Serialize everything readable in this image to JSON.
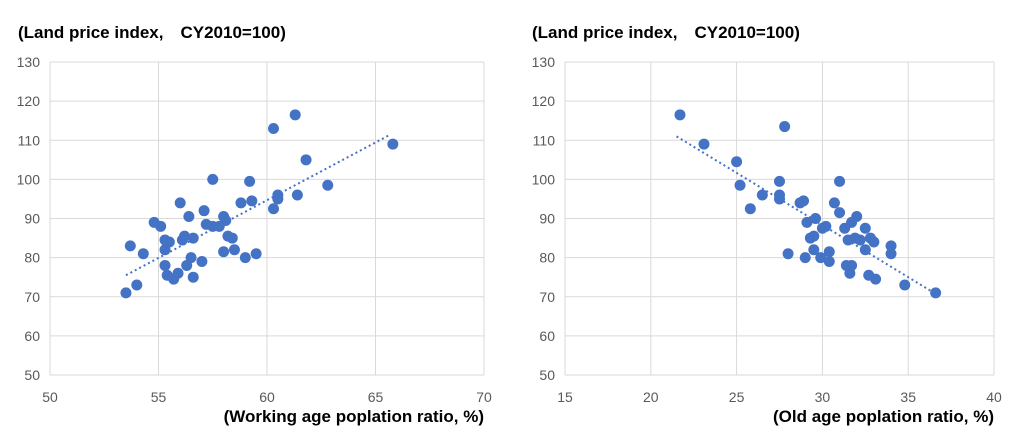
{
  "chart_data": [
    {
      "type": "scatter",
      "title": "(Land price index,　CY2010=100)",
      "xlabel": "(Working age poplation ratio, %)",
      "ylabel": "",
      "xlim": [
        50,
        70
      ],
      "ylim": [
        50,
        130
      ],
      "x_ticks": [
        "50",
        "55",
        "60",
        "65",
        "70"
      ],
      "y_ticks": [
        "50",
        "60",
        "70",
        "80",
        "90",
        "100",
        "110",
        "120",
        "130"
      ],
      "x_tick_values": [
        50,
        55,
        60,
        65,
        70
      ],
      "y_tick_values": [
        50,
        60,
        70,
        80,
        90,
        100,
        110,
        120,
        130
      ],
      "grid": "horizontal",
      "marker_color": "#4472C4",
      "trendline": {
        "style": "dotted",
        "x": [
          53.5,
          65.7
        ],
        "y": [
          75.5,
          111.5
        ]
      },
      "points": [
        [
          53.5,
          71
        ],
        [
          53.7,
          83
        ],
        [
          54.0,
          73
        ],
        [
          54.3,
          81
        ],
        [
          54.8,
          89
        ],
        [
          55.1,
          88
        ],
        [
          55.3,
          84.5
        ],
        [
          55.3,
          82
        ],
        [
          55.3,
          78
        ],
        [
          55.4,
          75.5
        ],
        [
          55.5,
          84
        ],
        [
          55.7,
          74.5
        ],
        [
          55.9,
          76
        ],
        [
          56.0,
          94
        ],
        [
          56.1,
          84.5
        ],
        [
          56.2,
          85.5
        ],
        [
          56.3,
          78
        ],
        [
          56.4,
          90.5
        ],
        [
          56.5,
          80
        ],
        [
          56.6,
          85
        ],
        [
          56.6,
          75
        ],
        [
          57.0,
          79
        ],
        [
          57.1,
          92
        ],
        [
          57.2,
          88.5
        ],
        [
          57.5,
          100
        ],
        [
          57.5,
          88
        ],
        [
          57.8,
          88
        ],
        [
          58.0,
          81.5
        ],
        [
          58.0,
          90.5
        ],
        [
          58.1,
          89.5
        ],
        [
          58.2,
          85.5
        ],
        [
          58.4,
          85
        ],
        [
          58.5,
          82
        ],
        [
          58.8,
          94
        ],
        [
          59.0,
          80
        ],
        [
          59.2,
          99.5
        ],
        [
          59.3,
          94.5
        ],
        [
          59.5,
          81
        ],
        [
          60.3,
          113
        ],
        [
          60.3,
          92.5
        ],
        [
          60.5,
          96
        ],
        [
          60.5,
          95
        ],
        [
          61.3,
          116.5
        ],
        [
          61.4,
          96
        ],
        [
          61.8,
          105
        ],
        [
          62.8,
          98.5
        ],
        [
          65.8,
          109
        ]
      ]
    },
    {
      "type": "scatter",
      "title": "(Land price index,　CY2010=100)",
      "xlabel": "(Old age poplation ratio, %)",
      "ylabel": "",
      "xlim": [
        15,
        40
      ],
      "ylim": [
        50,
        130
      ],
      "x_ticks": [
        "15",
        "20",
        "25",
        "30",
        "35",
        "40"
      ],
      "y_ticks": [
        "50",
        "60",
        "70",
        "80",
        "90",
        "100",
        "110",
        "120",
        "130"
      ],
      "x_tick_values": [
        15,
        20,
        25,
        30,
        35,
        40
      ],
      "y_tick_values": [
        50,
        60,
        70,
        80,
        90,
        100,
        110,
        120,
        130
      ],
      "grid": "horizontal",
      "marker_color": "#4472C4",
      "trendline": {
        "style": "dotted",
        "x": [
          21.5,
          36.5
        ],
        "y": [
          111,
          71
        ]
      },
      "points": [
        [
          21.7,
          116.5
        ],
        [
          23.1,
          109
        ],
        [
          25.0,
          104.5
        ],
        [
          25.2,
          98.5
        ],
        [
          25.8,
          92.5
        ],
        [
          26.5,
          96
        ],
        [
          27.5,
          99.5
        ],
        [
          27.5,
          96
        ],
        [
          27.5,
          95
        ],
        [
          27.8,
          113.5
        ],
        [
          28.0,
          81
        ],
        [
          28.7,
          94
        ],
        [
          28.9,
          94.5
        ],
        [
          29.0,
          80
        ],
        [
          29.1,
          89
        ],
        [
          29.3,
          85
        ],
        [
          29.5,
          82
        ],
        [
          29.5,
          85.5
        ],
        [
          29.6,
          90
        ],
        [
          29.9,
          80
        ],
        [
          30.0,
          87.5
        ],
        [
          30.2,
          88
        ],
        [
          30.4,
          81.5
        ],
        [
          30.4,
          79
        ],
        [
          30.7,
          94
        ],
        [
          31.0,
          99.5
        ],
        [
          31.0,
          91.5
        ],
        [
          31.3,
          87.5
        ],
        [
          31.4,
          78
        ],
        [
          31.5,
          84.5
        ],
        [
          31.6,
          76
        ],
        [
          31.7,
          89
        ],
        [
          31.7,
          78
        ],
        [
          31.9,
          85
        ],
        [
          32.0,
          90.5
        ],
        [
          32.2,
          84.5
        ],
        [
          32.5,
          82
        ],
        [
          32.5,
          87.5
        ],
        [
          32.7,
          75.5
        ],
        [
          32.8,
          85
        ],
        [
          33.0,
          84
        ],
        [
          33.1,
          74.5
        ],
        [
          34.0,
          83
        ],
        [
          34.0,
          81
        ],
        [
          34.8,
          73
        ],
        [
          36.6,
          71
        ]
      ]
    }
  ]
}
